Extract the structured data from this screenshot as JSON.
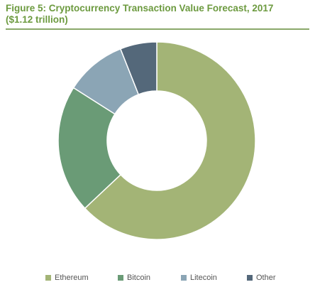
{
  "chart_data": {
    "type": "pie",
    "style": "donut",
    "title": "Figure 5: Cryptocurrency Transaction Value Forecast, 2017",
    "subtitle": "($1.12 trillion)",
    "categories": [
      "Ethereum",
      "Bitcoin",
      "Litecoin",
      "Other"
    ],
    "values": [
      63,
      21,
      10,
      6
    ],
    "colors": [
      "#a3b476",
      "#6a9b76",
      "#8ba5b5",
      "#54687a"
    ],
    "legend_position": "bottom"
  }
}
